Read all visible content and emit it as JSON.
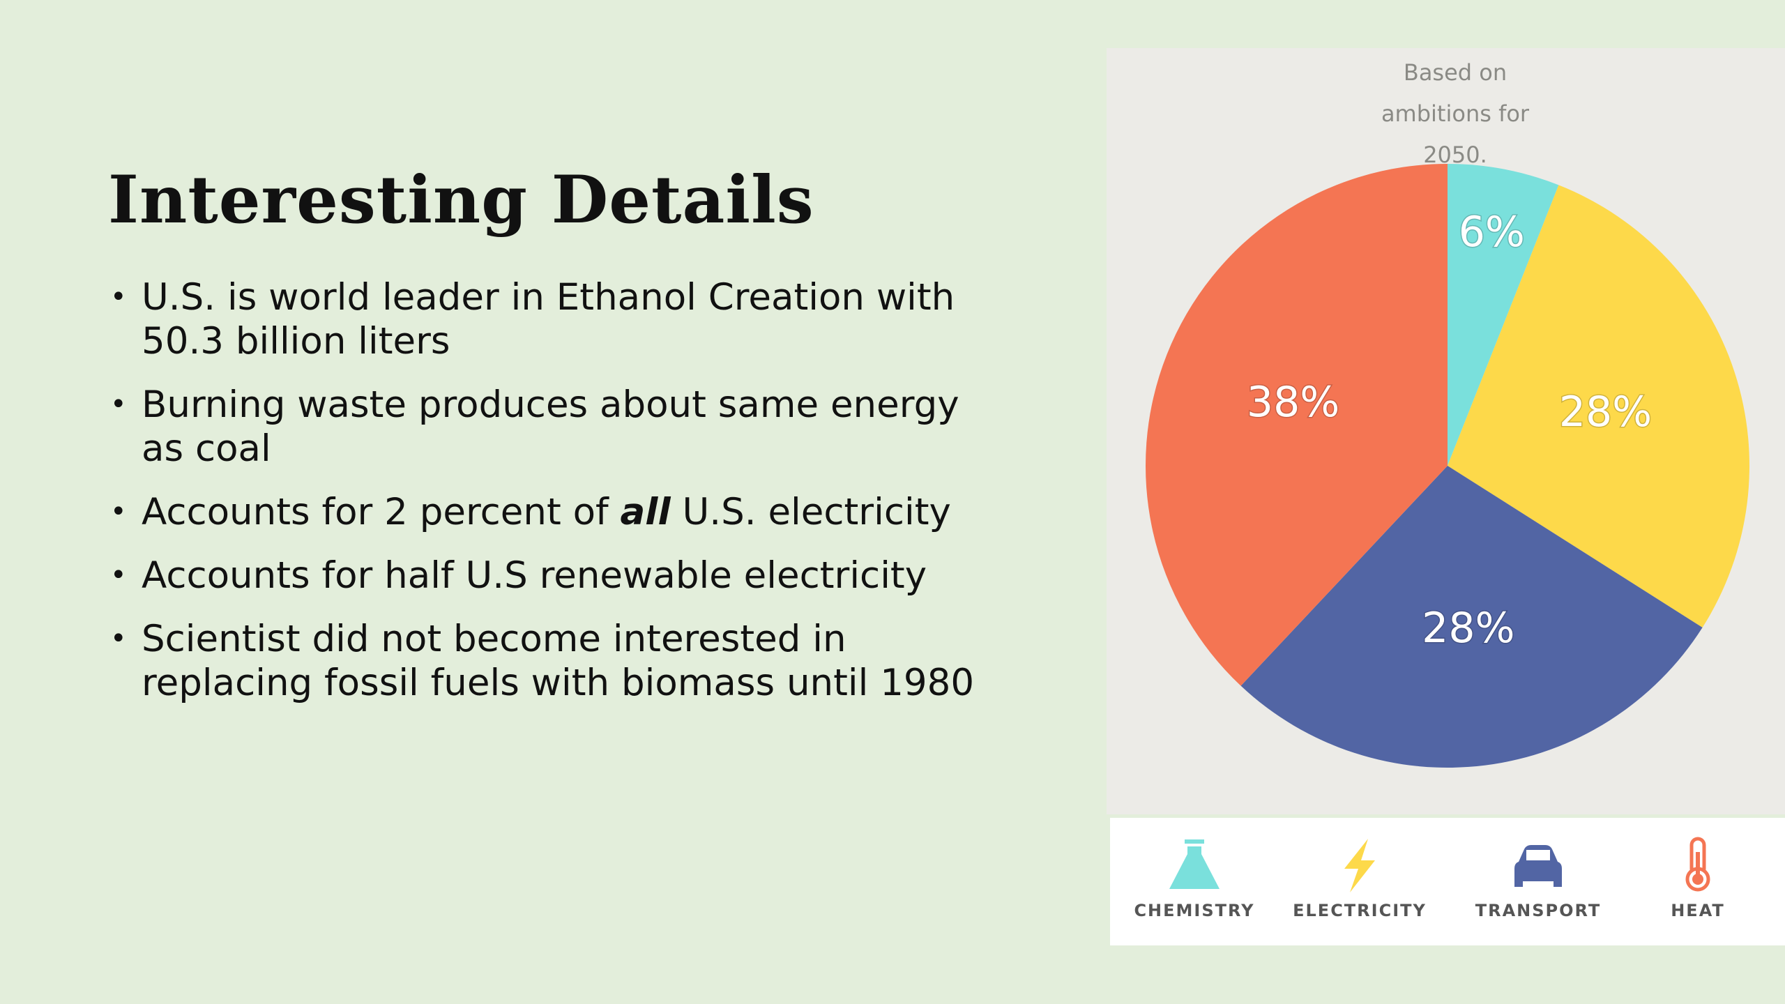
{
  "slide": {
    "title": "Interesting Details",
    "bullets": [
      "U.S. is world leader in Ethanol Creation with 50.3 billion liters",
      "Burning waste produces about same energy as coal",
      [
        "Accounts for 2 percent of ",
        "all",
        " U.S. electricity"
      ],
      "Accounts for half U.S renewable electricity",
      "Scientist did not become interested in replacing fossil fuels with biomass until 1980"
    ]
  },
  "chart_data": {
    "type": "pie",
    "subtitle": "Based on ambitions for 2050.",
    "categories": [
      "CHEMISTRY",
      "ELECTRICITY",
      "TRANSPORT",
      "HEAT"
    ],
    "values": [
      6,
      28,
      28,
      38
    ],
    "value_labels": [
      "6%",
      "28%",
      "28%",
      "38%"
    ],
    "colors": [
      "#7ae0dc",
      "#fdd94a",
      "#5265a4",
      "#f47553"
    ]
  }
}
